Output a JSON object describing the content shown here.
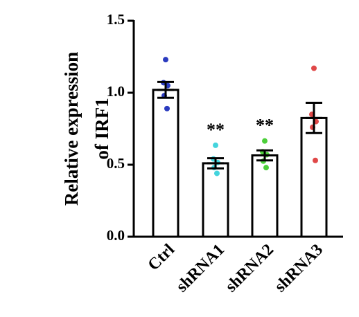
{
  "chart_data": {
    "type": "bar",
    "title": "",
    "xlabel": "",
    "ylabel": [
      "Relative expression",
      "of IRF1"
    ],
    "ylim": [
      0,
      1.5
    ],
    "yticks": [
      0.0,
      0.5,
      1.0,
      1.5
    ],
    "ytick_labels": [
      "0.0",
      "0.5",
      "1.0",
      "1.5"
    ],
    "categories": [
      "Ctrl",
      "shRNA1",
      "shRNA2",
      "shRNA3"
    ],
    "values": [
      1.02,
      0.51,
      0.565,
      0.825
    ],
    "sem": [
      0.055,
      0.035,
      0.035,
      0.105
    ],
    "points": [
      [
        1.23,
        1.07,
        1.05,
        0.98,
        0.89
      ],
      [
        0.635,
        0.54,
        0.515,
        0.48,
        0.44
      ],
      [
        0.665,
        0.59,
        0.57,
        0.525,
        0.48
      ],
      [
        1.17,
        0.85,
        0.8,
        0.76,
        0.53
      ]
    ],
    "point_colors": [
      "#2b3bbf",
      "#44d4dd",
      "#4ccf3a",
      "#e04848"
    ],
    "significance": [
      "",
      "**",
      "**",
      ""
    ],
    "grid": false,
    "legend": "none"
  }
}
